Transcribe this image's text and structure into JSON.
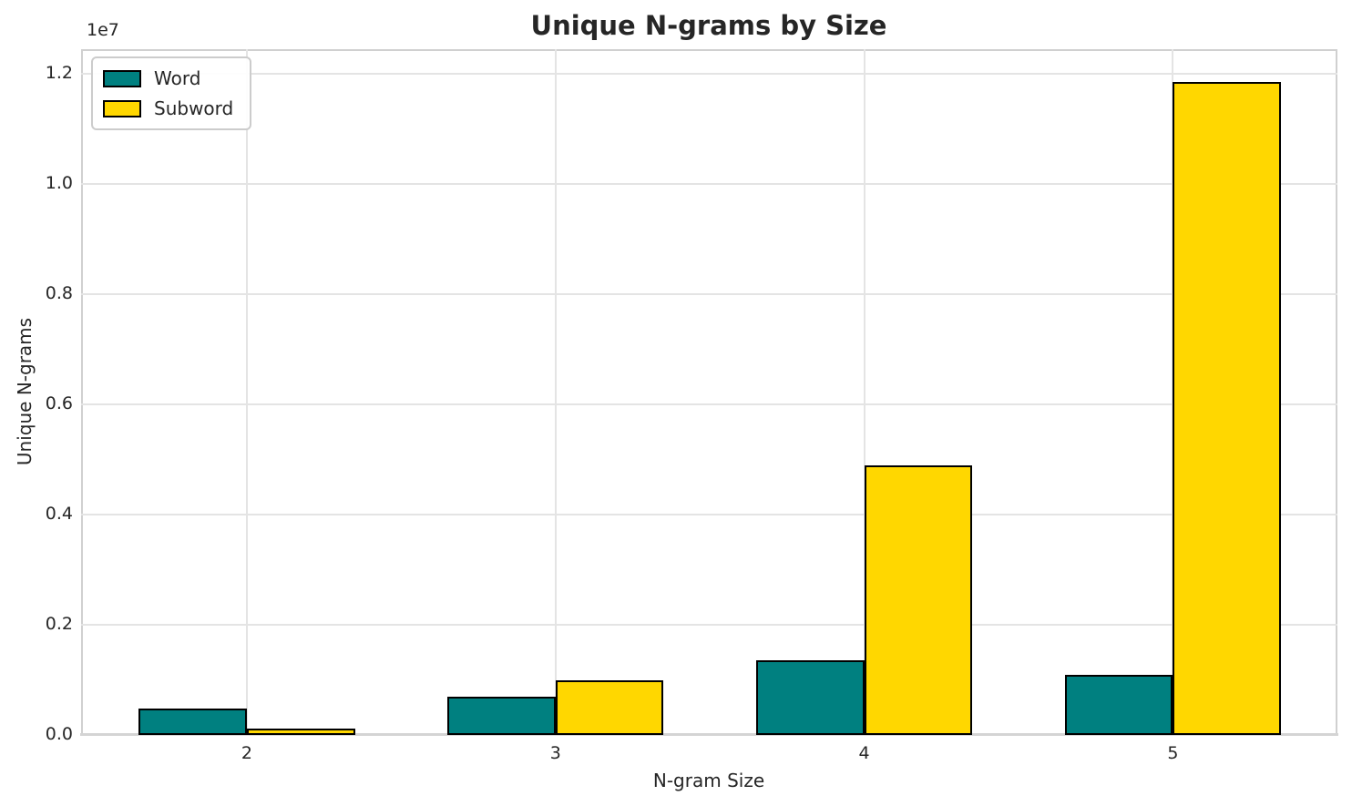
{
  "chart_data": {
    "type": "bar",
    "title": "Unique N-grams by Size",
    "xlabel": "N-gram Size",
    "ylabel": "Unique N-grams",
    "y_offset_label": "1e7",
    "categories": [
      "2",
      "3",
      "4",
      "5"
    ],
    "series": [
      {
        "name": "Word",
        "color": "#008080",
        "values": [
          480000,
          700000,
          1360000,
          1090000
        ]
      },
      {
        "name": "Subword",
        "color": "#FFD700",
        "values": [
          110000,
          990000,
          4890000,
          11860000
        ]
      }
    ],
    "ylim": [
      0,
      12453000
    ],
    "yticks": [
      0,
      2000000,
      4000000,
      6000000,
      8000000,
      10000000,
      12000000
    ],
    "ytick_labels": [
      "0.0",
      "0.2",
      "0.4",
      "0.6",
      "0.8",
      "1.0",
      "1.2"
    ],
    "bar_width_fraction": 0.35,
    "bar_edge_color": "#000000",
    "grid": true,
    "legend_position": "upper left"
  }
}
